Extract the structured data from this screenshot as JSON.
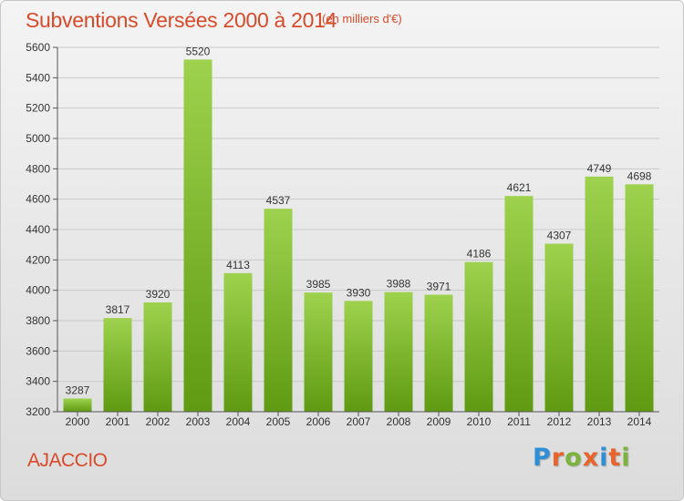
{
  "header": {
    "title": "Subventions Versées 2000 à 2014",
    "subtitle": "(en milliers d'€)"
  },
  "footer": {
    "commune": "AJACCIO",
    "logo_text": "Proxiti"
  },
  "colors": {
    "title": "#d94a2a",
    "bar_top": "#9ed24e",
    "bar_bottom": "#5f9a12",
    "logo_letters": [
      "#2f8fd6",
      "#e8642a",
      "#7ab43a",
      "#e8642a",
      "#2f8fd6",
      "#e8642a",
      "#7ab43a"
    ]
  },
  "chart_data": {
    "type": "bar",
    "title": "Subventions Versées 2000 à 2014",
    "subtitle": "(en milliers d'€)",
    "categories": [
      "2000",
      "2001",
      "2002",
      "2003",
      "2004",
      "2005",
      "2006",
      "2007",
      "2008",
      "2009",
      "2010",
      "2011",
      "2012",
      "2013",
      "2014"
    ],
    "values": [
      3287,
      3817,
      3920,
      5520,
      4113,
      4537,
      3985,
      3930,
      3988,
      3971,
      4186,
      4621,
      4307,
      4749,
      4698
    ],
    "ylim": [
      3200,
      5600
    ],
    "yticks": [
      3200,
      3400,
      3600,
      3800,
      4000,
      4200,
      4400,
      4600,
      4800,
      5000,
      5200,
      5400,
      5600
    ],
    "grid": true,
    "legend": "none",
    "xlabel": "",
    "ylabel": ""
  }
}
